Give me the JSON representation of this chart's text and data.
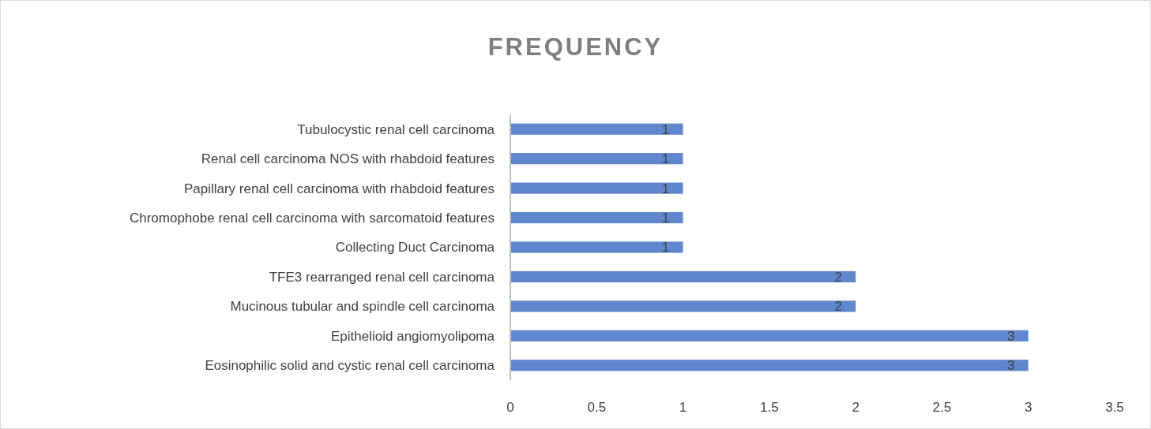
{
  "chart_data": {
    "type": "bar",
    "orientation": "horizontal",
    "title": "FREQUENCY",
    "categories": [
      "Tubulocystic renal cell carcinoma",
      "Renal cell carcinoma NOS with rhabdoid features",
      "Papillary renal cell carcinoma with rhabdoid features",
      "Chromophobe renal cell carcinoma with sarcomatoid features",
      "Collecting Duct Carcinoma",
      "TFE3 rearranged renal cell carcinoma",
      "Mucinous tubular and spindle cell carcinoma",
      "Epithelioid angiomyolipoma",
      "Eosinophilic solid and cystic renal cell carcinoma"
    ],
    "values": [
      1,
      1,
      1,
      1,
      1,
      2,
      2,
      3,
      3
    ],
    "color": "#4472c4",
    "xlim": [
      0,
      3.5
    ],
    "xticks": [
      0,
      0.5,
      1,
      1.5,
      2,
      2.5,
      3,
      3.5
    ],
    "data_labels": true
  }
}
